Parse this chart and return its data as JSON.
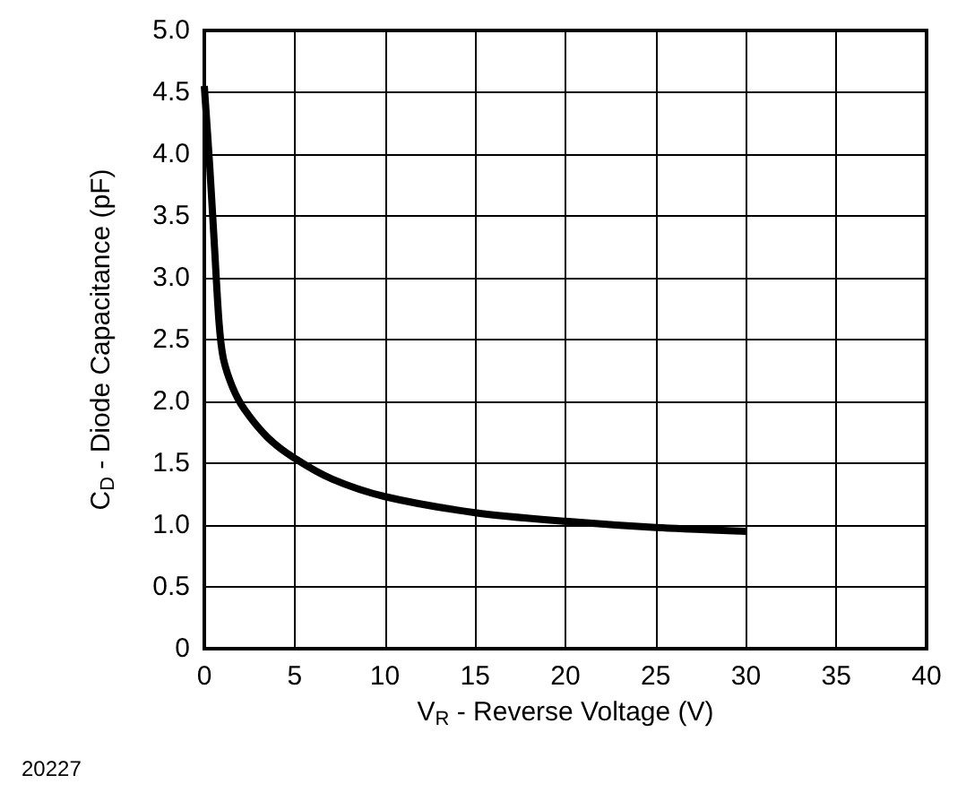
{
  "chart_data": {
    "type": "line",
    "xlabel": "V$_{R}$ - Reverse Voltage (V)",
    "ylabel": "C$_{D}$ - Diode Capacitance (pF)",
    "annotations": [
      "20227"
    ],
    "series": [
      {
        "color": "#000000",
        "x": [
          0,
          0.3,
          0.56,
          0.82,
          1.05,
          1.55,
          2.2,
          3.5,
          5,
          7.1,
          10,
          15,
          20,
          25,
          30
        ],
        "values": [
          4.55,
          3.9,
          3.26,
          2.63,
          2.35,
          2.12,
          1.94,
          1.71,
          1.54,
          1.37,
          1.23,
          1.1,
          1.03,
          0.98,
          0.95
        ]
      }
    ],
    "xlim": [
      0,
      40
    ],
    "xticks": [
      0,
      5,
      10,
      15,
      20,
      25,
      30,
      35,
      40
    ],
    "ylim": [
      0,
      5
    ],
    "yticks": [
      0,
      0.5,
      {
        "value": 1,
        "label": "1.0"
      },
      1.5,
      {
        "value": 2,
        "label": "2.0"
      },
      2.5,
      {
        "value": 3,
        "label": "3.0"
      },
      3.5,
      {
        "value": 4,
        "label": "4.0"
      },
      4.5,
      {
        "value": 5,
        "label": "5.0"
      }
    ],
    "grid": true,
    "marker": "none",
    "line_style": "solid"
  }
}
